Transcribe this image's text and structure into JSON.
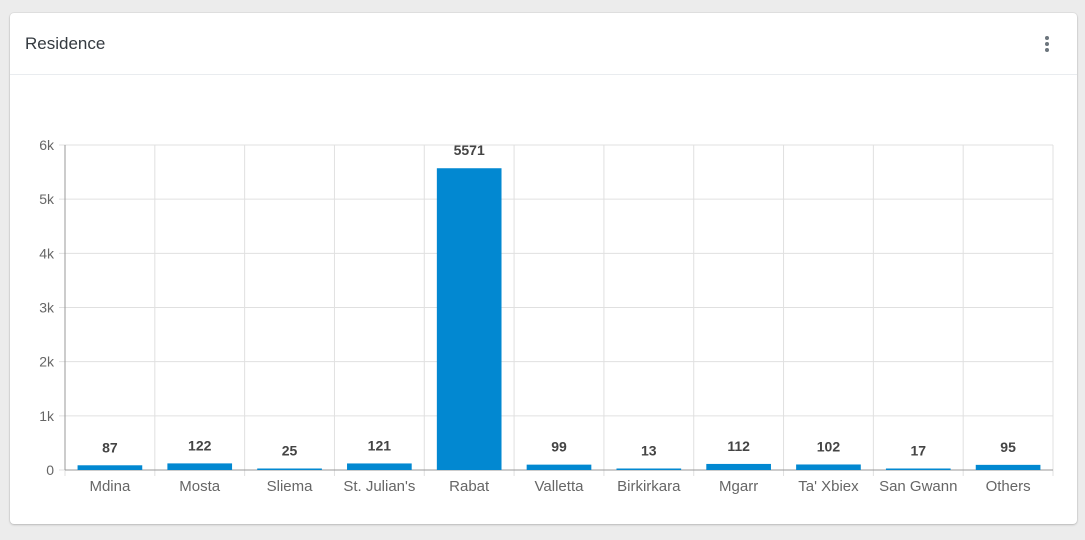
{
  "card": {
    "title": "Residence",
    "menu_icon": "more-vertical-icon"
  },
  "colors": {
    "bar": "#0288d1",
    "grid": "#e0e0e0",
    "axis": "#999999",
    "tick_text": "#666666",
    "label_text": "#444444"
  },
  "chart_data": {
    "type": "bar",
    "title": "",
    "xlabel": "",
    "ylabel": "",
    "categories": [
      "Mdina",
      "Mosta",
      "Sliema",
      "St. Julian's",
      "Rabat",
      "Valletta",
      "Birkirkara",
      "Mgarr",
      "Ta' Xbiex",
      "San Gwann",
      "Others"
    ],
    "values": [
      87,
      122,
      25,
      121,
      5571,
      99,
      13,
      112,
      102,
      17,
      95
    ],
    "ylim": [
      0,
      6000
    ],
    "yticks": [
      0,
      1000,
      2000,
      3000,
      4000,
      5000,
      6000
    ],
    "ytick_labels": [
      "0",
      "1k",
      "2k",
      "3k",
      "4k",
      "5k",
      "6k"
    ],
    "data_labels": [
      "87",
      "122",
      "25",
      "121",
      "5571",
      "99",
      "13",
      "112",
      "102",
      "17",
      "95"
    ],
    "grid": true,
    "legend": "none"
  }
}
